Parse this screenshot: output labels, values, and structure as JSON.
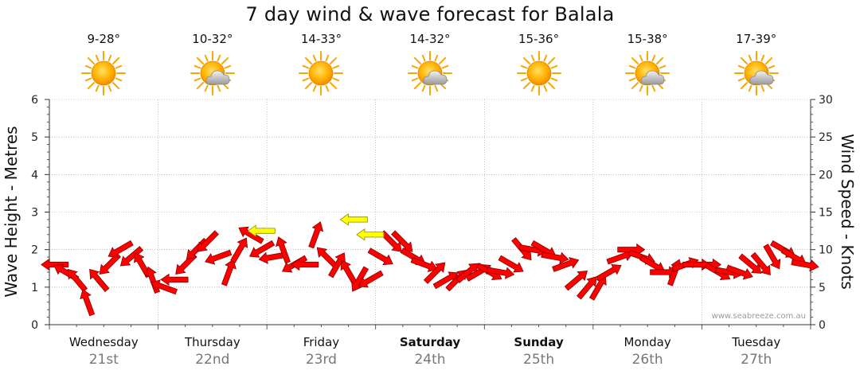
{
  "title": "7 day wind & wave forecast for Balala",
  "watermark": "www.seabreeze.com.au",
  "days": [
    {
      "name": "Wednesday",
      "date": "21st",
      "temp": "9-28°",
      "icon": "sun-icon",
      "bold": false
    },
    {
      "name": "Thursday",
      "date": "22nd",
      "temp": "10-32°",
      "icon": "sun-cloud-icon",
      "bold": false
    },
    {
      "name": "Friday",
      "date": "23rd",
      "temp": "14-33°",
      "icon": "sun-icon",
      "bold": false
    },
    {
      "name": "Saturday",
      "date": "24th",
      "temp": "14-32°",
      "icon": "sun-cloud-icon",
      "bold": true
    },
    {
      "name": "Sunday",
      "date": "25th",
      "temp": "15-36°",
      "icon": "sun-icon",
      "bold": true
    },
    {
      "name": "Monday",
      "date": "26th",
      "temp": "15-38°",
      "icon": "sun-cloud-icon",
      "bold": false
    },
    {
      "name": "Tuesday",
      "date": "27th",
      "temp": "17-39°",
      "icon": "sun-cloud-icon",
      "bold": false
    }
  ],
  "colors": {
    "arrow": "#ff0000",
    "arrow_stroke": "#8a0000",
    "highlight_arrow": "#ffff00",
    "grid": "#999999"
  },
  "chart_data": {
    "type": "line",
    "series": [
      {
        "kind": "wind",
        "x": [
          0,
          0.1,
          0.2,
          0.3,
          0.4,
          0.5,
          0.6,
          0.7,
          0.8,
          0.9,
          1,
          1.1,
          1.2,
          1.3,
          1.4,
          1.5,
          1.6,
          1.7,
          1.8,
          1.9,
          2,
          2.1,
          2.2,
          2.3,
          2.4,
          2.5,
          2.6,
          2.7,
          2.8,
          2.9,
          3,
          3.1,
          3.2,
          3.3,
          3.4,
          3.5,
          3.6,
          3.7,
          3.8,
          3.9,
          4,
          4.1,
          4.2,
          4.3,
          4.4,
          4.5,
          4.6,
          4.7,
          4.8,
          4.9,
          5,
          5.1,
          5.2,
          5.3,
          5.4,
          5.5,
          5.6,
          5.7,
          5.8,
          5.9,
          6,
          6.1,
          6.2,
          6.3,
          6.4,
          6.5,
          6.6,
          6.7,
          6.8,
          6.9
        ],
        "speed": [
          8,
          7,
          6,
          3,
          6,
          8,
          10,
          9,
          8,
          6,
          5,
          6,
          8,
          10,
          11,
          9,
          7,
          10,
          12,
          10,
          9,
          10,
          8,
          8,
          12,
          9,
          8,
          7,
          6,
          6,
          9,
          11,
          11,
          9,
          8,
          7,
          6,
          6,
          7,
          7,
          7,
          7,
          8,
          10,
          10,
          10,
          9,
          8,
          6,
          5,
          5,
          7,
          9,
          10,
          9,
          8,
          7,
          7,
          8,
          8,
          8,
          7,
          7,
          7,
          8,
          8,
          9,
          10,
          9,
          8
        ],
        "direction_deg": [
          90,
          120,
          140,
          160,
          140,
          45,
          60,
          50,
          150,
          160,
          110,
          90,
          45,
          45,
          45,
          70,
          200,
          210,
          120,
          60,
          80,
          160,
          60,
          90,
          200,
          135,
          210,
          150,
          30,
          60,
          300,
          315,
          315,
          300,
          290,
          225,
          240,
          225,
          230,
          240,
          300,
          280,
          300,
          320,
          280,
          300,
          280,
          250,
          230,
          220,
          210,
          240,
          250,
          270,
          290,
          300,
          270,
          200,
          250,
          270,
          270,
          300,
          280,
          290,
          310,
          320,
          330,
          300,
          300,
          280
        ],
        "highlight_x": [
          1.95,
          2.8,
          2.95
        ]
      },
      {
        "kind": "wave",
        "x": [],
        "height_m": []
      }
    ],
    "ylabel_left": "Wave Height - Metres",
    "ylabel_right": "Wind Speed - Knots",
    "y_left_ticks": [
      "0",
      "1",
      "2",
      "3",
      "4",
      "5",
      "6"
    ],
    "y_right_ticks": [
      "0",
      "5",
      "10",
      "15",
      "20",
      "25",
      "30"
    ],
    "ylim_left": [
      0,
      6
    ],
    "ylim_right": [
      0,
      30
    ],
    "grid": true
  }
}
